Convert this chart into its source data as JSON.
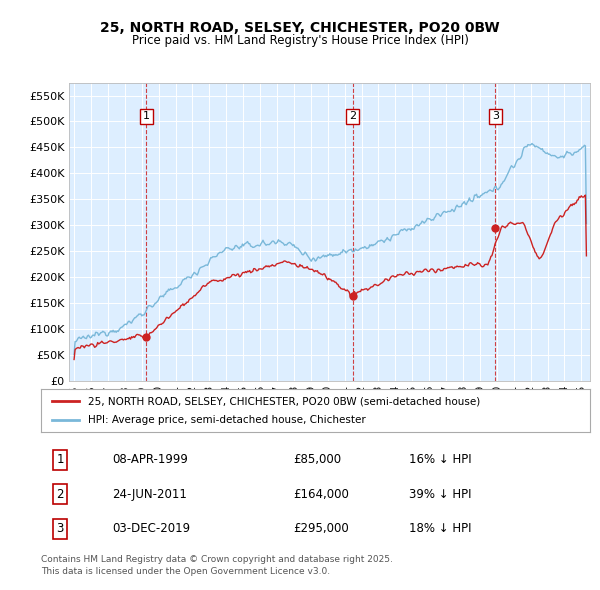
{
  "title": "25, NORTH ROAD, SELSEY, CHICHESTER, PO20 0BW",
  "subtitle": "Price paid vs. HM Land Registry's House Price Index (HPI)",
  "hpi_color": "#7ab8d9",
  "price_color": "#cc2222",
  "dashed_color": "#cc2222",
  "plot_bg": "#ddeeff",
  "ylim": [
    0,
    575000
  ],
  "yticks": [
    0,
    50000,
    100000,
    150000,
    200000,
    250000,
    300000,
    350000,
    400000,
    450000,
    500000,
    550000
  ],
  "xlim_start": 1994.7,
  "xlim_end": 2025.5,
  "xticks": [
    1995,
    1996,
    1997,
    1998,
    1999,
    2000,
    2001,
    2002,
    2003,
    2004,
    2005,
    2006,
    2007,
    2008,
    2009,
    2010,
    2011,
    2012,
    2013,
    2014,
    2015,
    2016,
    2017,
    2018,
    2019,
    2020,
    2021,
    2022,
    2023,
    2024,
    2025
  ],
  "sale_dates": [
    1999.27,
    2011.48,
    2019.92
  ],
  "sale_prices": [
    85000,
    164000,
    295000
  ],
  "sale_labels": [
    "1",
    "2",
    "3"
  ],
  "legend_line1": "25, NORTH ROAD, SELSEY, CHICHESTER, PO20 0BW (semi-detached house)",
  "legend_line2": "HPI: Average price, semi-detached house, Chichester",
  "table_data": [
    [
      "1",
      "08-APR-1999",
      "£85,000",
      "16% ↓ HPI"
    ],
    [
      "2",
      "24-JUN-2011",
      "£164,000",
      "39% ↓ HPI"
    ],
    [
      "3",
      "03-DEC-2019",
      "£295,000",
      "18% ↓ HPI"
    ]
  ],
  "footer": "Contains HM Land Registry data © Crown copyright and database right 2025.\nThis data is licensed under the Open Government Licence v3.0."
}
